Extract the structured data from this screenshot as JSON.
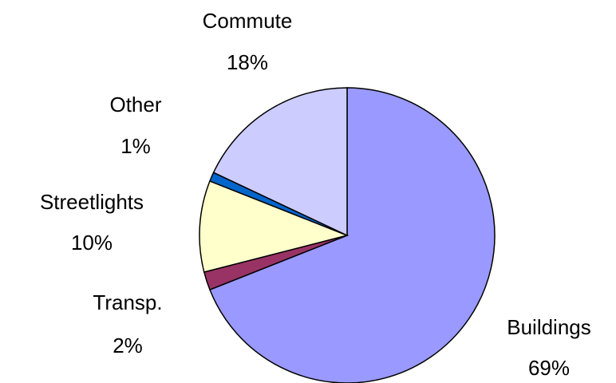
{
  "chart_data": {
    "type": "pie",
    "categories": [
      "Buildings",
      "Transp.",
      "Streetlights",
      "Other",
      "Commute"
    ],
    "values": [
      69,
      2,
      10,
      1,
      18
    ],
    "value_labels": [
      "69%",
      "2%",
      "10%",
      "1%",
      "18%"
    ],
    "colors": [
      "#9999ff",
      "#993366",
      "#ffffcc",
      "#0066cc",
      "#ccccff"
    ]
  }
}
